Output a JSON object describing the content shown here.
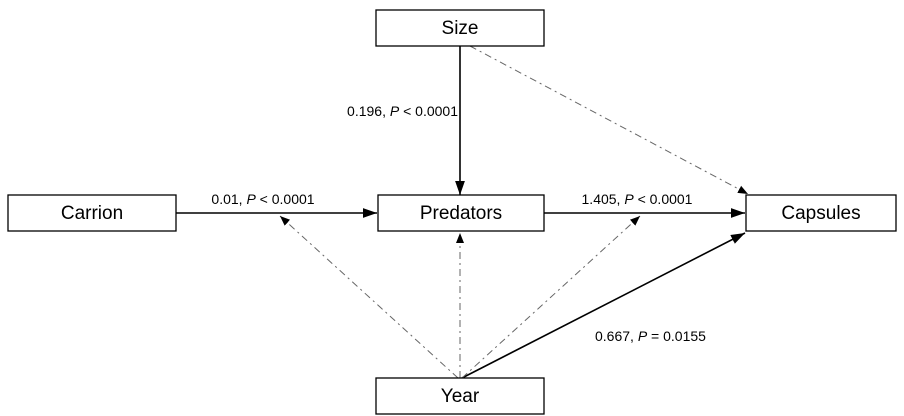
{
  "nodes": [
    {
      "label": "Size"
    },
    {
      "label": "Carrion"
    },
    {
      "label": "Predators"
    },
    {
      "label": "Capsules"
    },
    {
      "label": "Year"
    }
  ],
  "edges": [
    {
      "label": [
        "0.196, ",
        "P",
        " < 0.0001"
      ]
    },
    {
      "label": [
        "0.01, ",
        "P",
        " < 0.0001"
      ]
    },
    {
      "label": [
        "1.405, ",
        "P",
        " < 0.0001"
      ]
    },
    {
      "label": [
        "0.667, ",
        "P",
        " = 0.0155"
      ]
    }
  ]
}
